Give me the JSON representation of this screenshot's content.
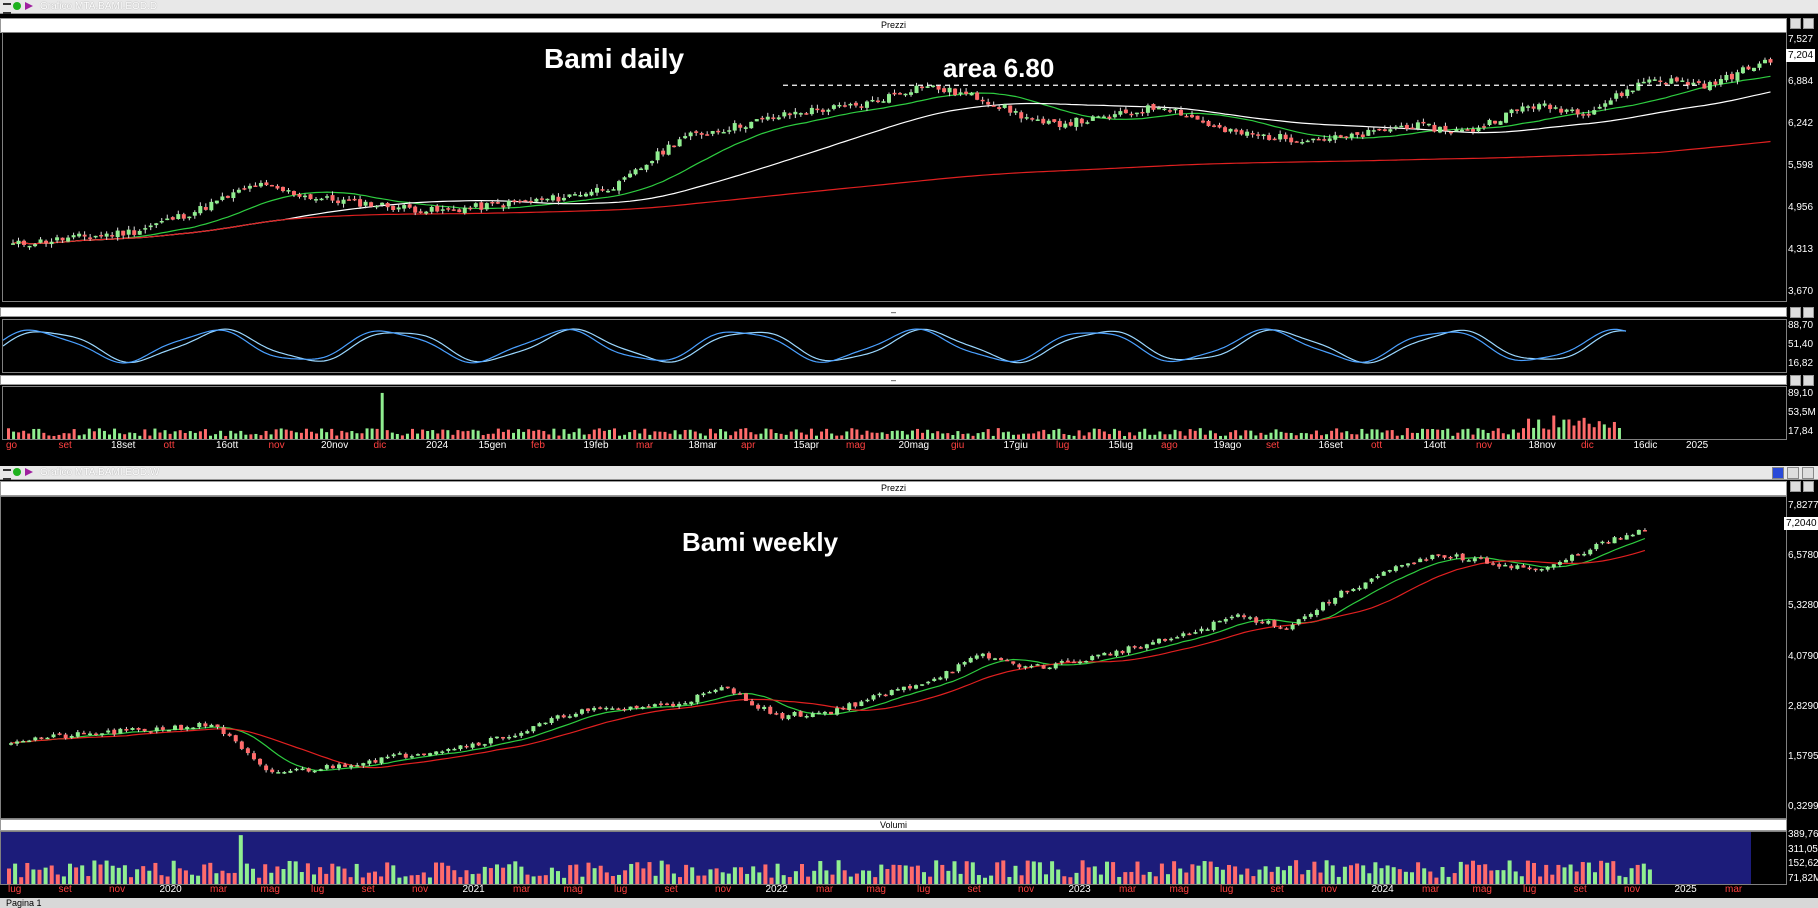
{
  "daily_window": {
    "title": "Grafico MTA.BAMI.EOD.D",
    "price_panel_label": "Prezzi",
    "osc_panel_label": "–",
    "vol_panel_label": "–",
    "annotation_title": "Bami daily",
    "annotation_level": "area 6.80",
    "last_price_label": "7,204",
    "price_ticks": [
      "7,527",
      "6,884",
      "6,242",
      "5,598",
      "4,956",
      "4,313",
      "3,670"
    ],
    "osc_ticks": [
      "88,70",
      "51,40",
      "16,82"
    ],
    "vol_ticks": [
      "89,10",
      "53,5M",
      "17,84"
    ],
    "date_labels": [
      {
        "text": "go",
        "color": "#ff4040"
      },
      {
        "text": "set",
        "color": "#ff4040"
      },
      {
        "text": "18set",
        "color": "#ffffff"
      },
      {
        "text": "ott",
        "color": "#ff4040"
      },
      {
        "text": "16ott",
        "color": "#ffffff"
      },
      {
        "text": "nov",
        "color": "#ff4040"
      },
      {
        "text": "20nov",
        "color": "#ffffff"
      },
      {
        "text": "dic",
        "color": "#ff4040"
      },
      {
        "text": "2024",
        "color": "#ffffff"
      },
      {
        "text": "15gen",
        "color": "#ffffff"
      },
      {
        "text": "feb",
        "color": "#ff4040"
      },
      {
        "text": "19feb",
        "color": "#ffffff"
      },
      {
        "text": "mar",
        "color": "#ff4040"
      },
      {
        "text": "18mar",
        "color": "#ffffff"
      },
      {
        "text": "apr",
        "color": "#ff4040"
      },
      {
        "text": "15apr",
        "color": "#ffffff"
      },
      {
        "text": "mag",
        "color": "#ff4040"
      },
      {
        "text": "20mag",
        "color": "#ffffff"
      },
      {
        "text": "giu",
        "color": "#ff4040"
      },
      {
        "text": "17giu",
        "color": "#ffffff"
      },
      {
        "text": "lug",
        "color": "#ff4040"
      },
      {
        "text": "15lug",
        "color": "#ffffff"
      },
      {
        "text": "ago",
        "color": "#ff4040"
      },
      {
        "text": "19ago",
        "color": "#ffffff"
      },
      {
        "text": "set",
        "color": "#ff4040"
      },
      {
        "text": "16set",
        "color": "#ffffff"
      },
      {
        "text": "ott",
        "color": "#ff4040"
      },
      {
        "text": "14ott",
        "color": "#ffffff"
      },
      {
        "text": "nov",
        "color": "#ff4040"
      },
      {
        "text": "18nov",
        "color": "#ffffff"
      },
      {
        "text": "dic",
        "color": "#ff4040"
      },
      {
        "text": "16dic",
        "color": "#ffffff"
      },
      {
        "text": "2025",
        "color": "#ffffff"
      }
    ]
  },
  "weekly_window": {
    "title": "Grafico MTA.BAMI.EOD.W",
    "price_panel_label": "Prezzi",
    "vol_panel_label": "Volumi",
    "annotation_title": "Bami weekly",
    "last_price_label": "7,2040",
    "price_ticks": [
      "7,8277",
      "6,5780",
      "5,3280",
      "4,0790",
      "2,8290",
      "1,5795",
      "0,3299"
    ],
    "vol_ticks": [
      "389,76M",
      "311,05M",
      "152,62M",
      "71,82M"
    ],
    "date_labels": [
      {
        "text": "lug",
        "color": "#ff4040"
      },
      {
        "text": "set",
        "color": "#ff4040"
      },
      {
        "text": "nov",
        "color": "#ff4040"
      },
      {
        "text": "2020",
        "color": "#ffffff"
      },
      {
        "text": "mar",
        "color": "#ff4040"
      },
      {
        "text": "mag",
        "color": "#ff4040"
      },
      {
        "text": "lug",
        "color": "#ff4040"
      },
      {
        "text": "set",
        "color": "#ff4040"
      },
      {
        "text": "nov",
        "color": "#ff4040"
      },
      {
        "text": "2021",
        "color": "#ffffff"
      },
      {
        "text": "mar",
        "color": "#ff4040"
      },
      {
        "text": "mag",
        "color": "#ff4040"
      },
      {
        "text": "lug",
        "color": "#ff4040"
      },
      {
        "text": "set",
        "color": "#ff4040"
      },
      {
        "text": "nov",
        "color": "#ff4040"
      },
      {
        "text": "2022",
        "color": "#ffffff"
      },
      {
        "text": "mar",
        "color": "#ff4040"
      },
      {
        "text": "mag",
        "color": "#ff4040"
      },
      {
        "text": "lug",
        "color": "#ff4040"
      },
      {
        "text": "set",
        "color": "#ff4040"
      },
      {
        "text": "nov",
        "color": "#ff4040"
      },
      {
        "text": "2023",
        "color": "#ffffff"
      },
      {
        "text": "mar",
        "color": "#ff4040"
      },
      {
        "text": "mag",
        "color": "#ff4040"
      },
      {
        "text": "lug",
        "color": "#ff4040"
      },
      {
        "text": "set",
        "color": "#ff4040"
      },
      {
        "text": "nov",
        "color": "#ff4040"
      },
      {
        "text": "2024",
        "color": "#ffffff"
      },
      {
        "text": "mar",
        "color": "#ff4040"
      },
      {
        "text": "mag",
        "color": "#ff4040"
      },
      {
        "text": "lug",
        "color": "#ff4040"
      },
      {
        "text": "set",
        "color": "#ff4040"
      },
      {
        "text": "nov",
        "color": "#ff4040"
      },
      {
        "text": "2025",
        "color": "#ffffff"
      },
      {
        "text": "mar",
        "color": "#ff4040"
      }
    ]
  },
  "status_bar": {
    "page_tab": "Pagina 1"
  },
  "colors": {
    "up": "#90ee90",
    "down": "#ff6b6b",
    "ma_green": "#2ecc40",
    "ma_white": "#ffffff",
    "ma_red": "#e02020",
    "osc_1": "#9ad7ff",
    "osc_2": "#4aa0ff",
    "vol_bg": "#1c1c7a"
  },
  "chart_data": [
    {
      "type": "line",
      "title": "Bami daily",
      "series": [
        {
          "values": [
            4.4,
            4.5,
            4.6,
            4.9,
            5.3,
            5.1,
            5.0,
            4.9,
            5.0,
            5.1,
            5.3,
            6.0,
            6.2,
            6.4,
            6.5,
            6.8,
            6.6,
            6.2,
            6.3,
            6.5,
            6.1,
            6.0,
            6.0,
            6.2,
            6.1,
            6.5,
            6.4,
            6.9,
            6.8,
            7.2
          ]
        }
      ],
      "annotations": [
        "area 6.80"
      ],
      "ylim": [
        3.67,
        7.527
      ]
    },
    {
      "type": "line",
      "title": "Bami weekly",
      "series": [
        {
          "values": [
            2.0,
            2.1,
            2.2,
            2.3,
            2.4,
            1.2,
            1.3,
            1.5,
            1.7,
            1.9,
            2.2,
            2.7,
            2.8,
            2.9,
            3.3,
            2.6,
            2.7,
            3.1,
            3.5,
            4.1,
            3.8,
            4.0,
            4.3,
            4.6,
            5.1,
            4.8,
            5.6,
            6.2,
            6.6,
            6.4,
            6.2,
            6.8,
            7.2
          ]
        }
      ],
      "ylim": [
        0.3299,
        7.8277
      ]
    }
  ]
}
